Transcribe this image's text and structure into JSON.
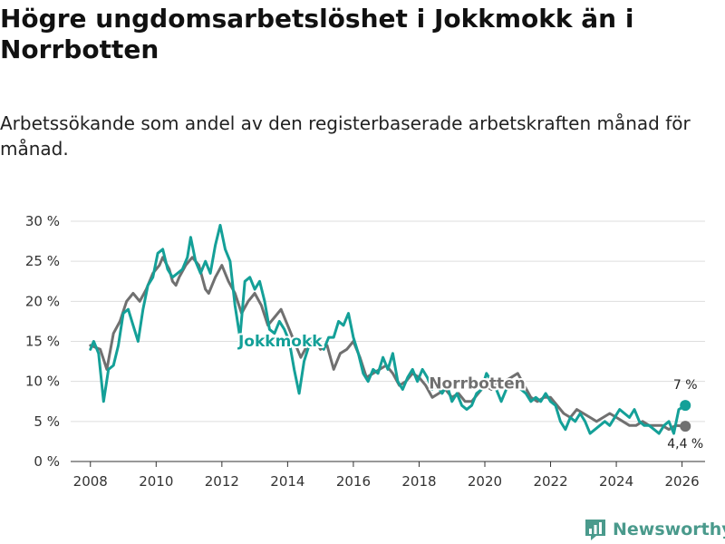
{
  "page": {
    "title": "Högre ungdomsarbetslöshet i Jokkmokk än i Norrbotten",
    "subtitle": "Arbetssökande som andel av den registerbaserade arbetskraften månad för månad.",
    "logo_text": "Newsworthy"
  },
  "colors": {
    "jokkmokk": "#14a098",
    "norrbotten": "#707070",
    "grid": "#dddddd",
    "axis": "#333333"
  },
  "chart_data": {
    "type": "line",
    "title": "Högre ungdomsarbetslöshet i Jokkmokk än i Norrbotten",
    "xlabel": "",
    "ylabel": "",
    "xlim": [
      2007.4,
      2026.7
    ],
    "ylim": [
      0,
      30
    ],
    "grid": true,
    "y_ticks": [
      0,
      5,
      10,
      15,
      20,
      25,
      30
    ],
    "y_tick_labels": [
      "0 %",
      "5 %",
      "10 %",
      "15 %",
      "20 %",
      "25 %",
      "30 %"
    ],
    "x_ticks": [
      2008,
      2010,
      2012,
      2014,
      2016,
      2018,
      2020,
      2022,
      2024,
      2026
    ],
    "x_tick_labels": [
      "2008",
      "2010",
      "2012",
      "2014",
      "2016",
      "2018",
      "2020",
      "2022",
      "2024",
      "2026"
    ],
    "series": [
      {
        "name": "Norrbotten",
        "label": "Norrbotten",
        "color": "#707070",
        "end_label": "4,4 %",
        "points": [
          [
            2008.0,
            14.5
          ],
          [
            2008.3,
            14.0
          ],
          [
            2008.5,
            11.5
          ],
          [
            2008.7,
            16.0
          ],
          [
            2008.9,
            17.5
          ],
          [
            2009.1,
            20.0
          ],
          [
            2009.3,
            21.0
          ],
          [
            2009.5,
            20.0
          ],
          [
            2009.7,
            21.5
          ],
          [
            2009.9,
            23.5
          ],
          [
            2010.1,
            24.5
          ],
          [
            2010.2,
            25.5
          ],
          [
            2010.4,
            24.0
          ],
          [
            2010.5,
            22.5
          ],
          [
            2010.6,
            22.0
          ],
          [
            2010.7,
            23.0
          ],
          [
            2010.9,
            24.5
          ],
          [
            2011.1,
            25.5
          ],
          [
            2011.3,
            24.5
          ],
          [
            2011.5,
            21.5
          ],
          [
            2011.6,
            21.0
          ],
          [
            2011.8,
            23.0
          ],
          [
            2012.0,
            24.5
          ],
          [
            2012.2,
            22.5
          ],
          [
            2012.4,
            21.0
          ],
          [
            2012.6,
            18.5
          ],
          [
            2012.8,
            20.0
          ],
          [
            2013.0,
            21.0
          ],
          [
            2013.2,
            19.5
          ],
          [
            2013.4,
            17.0
          ],
          [
            2013.6,
            18.0
          ],
          [
            2013.8,
            19.0
          ],
          [
            2014.0,
            17.0
          ],
          [
            2014.2,
            15.0
          ],
          [
            2014.4,
            13.0
          ],
          [
            2014.6,
            14.5
          ],
          [
            2014.8,
            15.5
          ],
          [
            2015.0,
            14.0
          ],
          [
            2015.2,
            14.5
          ],
          [
            2015.4,
            11.5
          ],
          [
            2015.6,
            13.5
          ],
          [
            2015.8,
            14.0
          ],
          [
            2016.0,
            15.0
          ],
          [
            2016.2,
            13.0
          ],
          [
            2016.4,
            10.5
          ],
          [
            2016.6,
            11.0
          ],
          [
            2016.8,
            11.5
          ],
          [
            2017.0,
            12.0
          ],
          [
            2017.2,
            11.0
          ],
          [
            2017.4,
            9.5
          ],
          [
            2017.6,
            10.0
          ],
          [
            2017.8,
            11.0
          ],
          [
            2018.0,
            10.5
          ],
          [
            2018.2,
            9.5
          ],
          [
            2018.4,
            8.0
          ],
          [
            2018.6,
            8.5
          ],
          [
            2018.8,
            9.0
          ],
          [
            2019.0,
            8.0
          ],
          [
            2019.2,
            8.5
          ],
          [
            2019.4,
            7.5
          ],
          [
            2019.6,
            7.5
          ],
          [
            2019.8,
            8.5
          ],
          [
            2020.0,
            9.5
          ],
          [
            2020.2,
            9.0
          ],
          [
            2020.4,
            10.0
          ],
          [
            2020.6,
            10.0
          ],
          [
            2020.8,
            10.5
          ],
          [
            2021.0,
            11.0
          ],
          [
            2021.2,
            9.5
          ],
          [
            2021.4,
            8.0
          ],
          [
            2021.6,
            7.5
          ],
          [
            2021.8,
            8.0
          ],
          [
            2022.0,
            8.0
          ],
          [
            2022.2,
            7.0
          ],
          [
            2022.4,
            6.0
          ],
          [
            2022.6,
            5.5
          ],
          [
            2022.8,
            6.5
          ],
          [
            2023.0,
            6.0
          ],
          [
            2023.2,
            5.5
          ],
          [
            2023.4,
            5.0
          ],
          [
            2023.6,
            5.5
          ],
          [
            2023.8,
            6.0
          ],
          [
            2024.0,
            5.5
          ],
          [
            2024.2,
            5.0
          ],
          [
            2024.4,
            4.5
          ],
          [
            2024.6,
            4.5
          ],
          [
            2024.8,
            5.0
          ],
          [
            2025.0,
            4.5
          ],
          [
            2025.2,
            4.5
          ],
          [
            2025.4,
            4.5
          ],
          [
            2025.6,
            4.0
          ],
          [
            2025.8,
            4.5
          ],
          [
            2026.1,
            4.4
          ]
        ]
      },
      {
        "name": "Jokkmokk",
        "label": "Jokkmokk",
        "color": "#14a098",
        "end_label": "7 %",
        "points": [
          [
            2008.0,
            14.0
          ],
          [
            2008.1,
            15.0
          ],
          [
            2008.25,
            13.5
          ],
          [
            2008.4,
            7.5
          ],
          [
            2008.55,
            11.5
          ],
          [
            2008.7,
            12.0
          ],
          [
            2008.85,
            14.5
          ],
          [
            2009.0,
            18.5
          ],
          [
            2009.15,
            19.0
          ],
          [
            2009.3,
            17.0
          ],
          [
            2009.45,
            15.0
          ],
          [
            2009.6,
            19.0
          ],
          [
            2009.75,
            22.0
          ],
          [
            2009.9,
            23.0
          ],
          [
            2010.05,
            26.0
          ],
          [
            2010.2,
            26.5
          ],
          [
            2010.35,
            24.0
          ],
          [
            2010.5,
            23.0
          ],
          [
            2010.65,
            23.5
          ],
          [
            2010.8,
            24.0
          ],
          [
            2010.95,
            25.5
          ],
          [
            2011.05,
            28.0
          ],
          [
            2011.2,
            25.0
          ],
          [
            2011.35,
            23.5
          ],
          [
            2011.5,
            25.0
          ],
          [
            2011.65,
            23.5
          ],
          [
            2011.8,
            27.0
          ],
          [
            2011.95,
            29.5
          ],
          [
            2012.1,
            26.5
          ],
          [
            2012.25,
            25.0
          ],
          [
            2012.4,
            19.5
          ],
          [
            2012.55,
            15.5
          ],
          [
            2012.7,
            22.5
          ],
          [
            2012.85,
            23.0
          ],
          [
            2013.0,
            21.5
          ],
          [
            2013.15,
            22.5
          ],
          [
            2013.3,
            20.0
          ],
          [
            2013.45,
            16.5
          ],
          [
            2013.6,
            16.0
          ],
          [
            2013.75,
            17.5
          ],
          [
            2013.9,
            16.5
          ],
          [
            2014.05,
            15.0
          ],
          [
            2014.2,
            11.5
          ],
          [
            2014.35,
            8.5
          ],
          [
            2014.5,
            12.5
          ],
          [
            2014.65,
            14.5
          ],
          [
            2014.8,
            15.5
          ],
          [
            2014.95,
            15.0
          ],
          [
            2015.1,
            14.0
          ],
          [
            2015.25,
            15.5
          ],
          [
            2015.4,
            15.5
          ],
          [
            2015.55,
            17.5
          ],
          [
            2015.7,
            17.0
          ],
          [
            2015.85,
            18.5
          ],
          [
            2016.0,
            15.5
          ],
          [
            2016.15,
            13.5
          ],
          [
            2016.3,
            11.0
          ],
          [
            2016.45,
            10.0
          ],
          [
            2016.6,
            11.5
          ],
          [
            2016.75,
            11.0
          ],
          [
            2016.9,
            13.0
          ],
          [
            2017.05,
            11.5
          ],
          [
            2017.2,
            13.5
          ],
          [
            2017.35,
            10.0
          ],
          [
            2017.5,
            9.0
          ],
          [
            2017.65,
            10.5
          ],
          [
            2017.8,
            11.5
          ],
          [
            2017.95,
            10.0
          ],
          [
            2018.1,
            11.5
          ],
          [
            2018.25,
            10.5
          ],
          [
            2018.4,
            9.0
          ],
          [
            2018.55,
            9.5
          ],
          [
            2018.7,
            8.5
          ],
          [
            2018.85,
            9.5
          ],
          [
            2019.0,
            7.5
          ],
          [
            2019.15,
            8.5
          ],
          [
            2019.3,
            7.0
          ],
          [
            2019.45,
            6.5
          ],
          [
            2019.6,
            7.0
          ],
          [
            2019.75,
            8.5
          ],
          [
            2019.9,
            9.0
          ],
          [
            2020.05,
            11.0
          ],
          [
            2020.2,
            10.0
          ],
          [
            2020.35,
            9.0
          ],
          [
            2020.5,
            7.5
          ],
          [
            2020.65,
            9.0
          ],
          [
            2020.8,
            9.5
          ],
          [
            2020.95,
            10.0
          ],
          [
            2021.1,
            9.0
          ],
          [
            2021.25,
            8.5
          ],
          [
            2021.4,
            7.5
          ],
          [
            2021.55,
            8.0
          ],
          [
            2021.7,
            7.5
          ],
          [
            2021.85,
            8.5
          ],
          [
            2022.0,
            7.5
          ],
          [
            2022.15,
            7.0
          ],
          [
            2022.3,
            5.0
          ],
          [
            2022.45,
            4.0
          ],
          [
            2022.6,
            5.5
          ],
          [
            2022.75,
            5.0
          ],
          [
            2022.9,
            6.0
          ],
          [
            2023.05,
            5.0
          ],
          [
            2023.2,
            3.5
          ],
          [
            2023.35,
            4.0
          ],
          [
            2023.5,
            4.5
          ],
          [
            2023.65,
            5.0
          ],
          [
            2023.8,
            4.5
          ],
          [
            2023.95,
            5.5
          ],
          [
            2024.1,
            6.5
          ],
          [
            2024.25,
            6.0
          ],
          [
            2024.4,
            5.5
          ],
          [
            2024.55,
            6.5
          ],
          [
            2024.7,
            5.0
          ],
          [
            2024.85,
            4.5
          ],
          [
            2025.0,
            4.5
          ],
          [
            2025.15,
            4.0
          ],
          [
            2025.3,
            3.5
          ],
          [
            2025.45,
            4.5
          ],
          [
            2025.6,
            5.0
          ],
          [
            2025.75,
            3.5
          ],
          [
            2025.9,
            6.5
          ],
          [
            2026.1,
            7.0
          ]
        ]
      }
    ]
  }
}
